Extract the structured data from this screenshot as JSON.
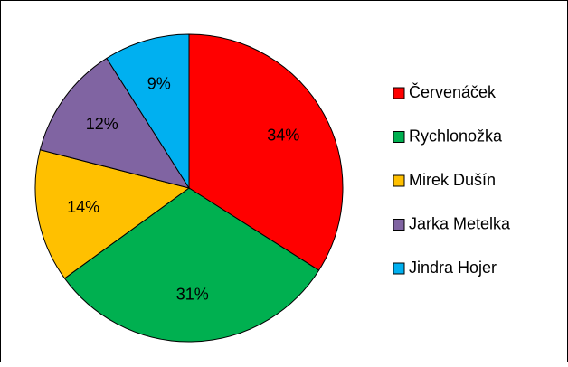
{
  "chart_data": {
    "type": "pie",
    "categories": [
      "Červenáček",
      "Rychlonožka",
      "Mirek Dušín",
      "Jarka Metelka",
      "Jindra Hojer"
    ],
    "values": [
      34,
      31,
      14,
      12,
      9
    ],
    "value_labels": [
      "34%",
      "31%",
      "14%",
      "12%",
      "9%"
    ],
    "colors": [
      "#ff0000",
      "#00b050",
      "#ffc000",
      "#8064a2",
      "#00b0f0"
    ],
    "legend": "right"
  }
}
